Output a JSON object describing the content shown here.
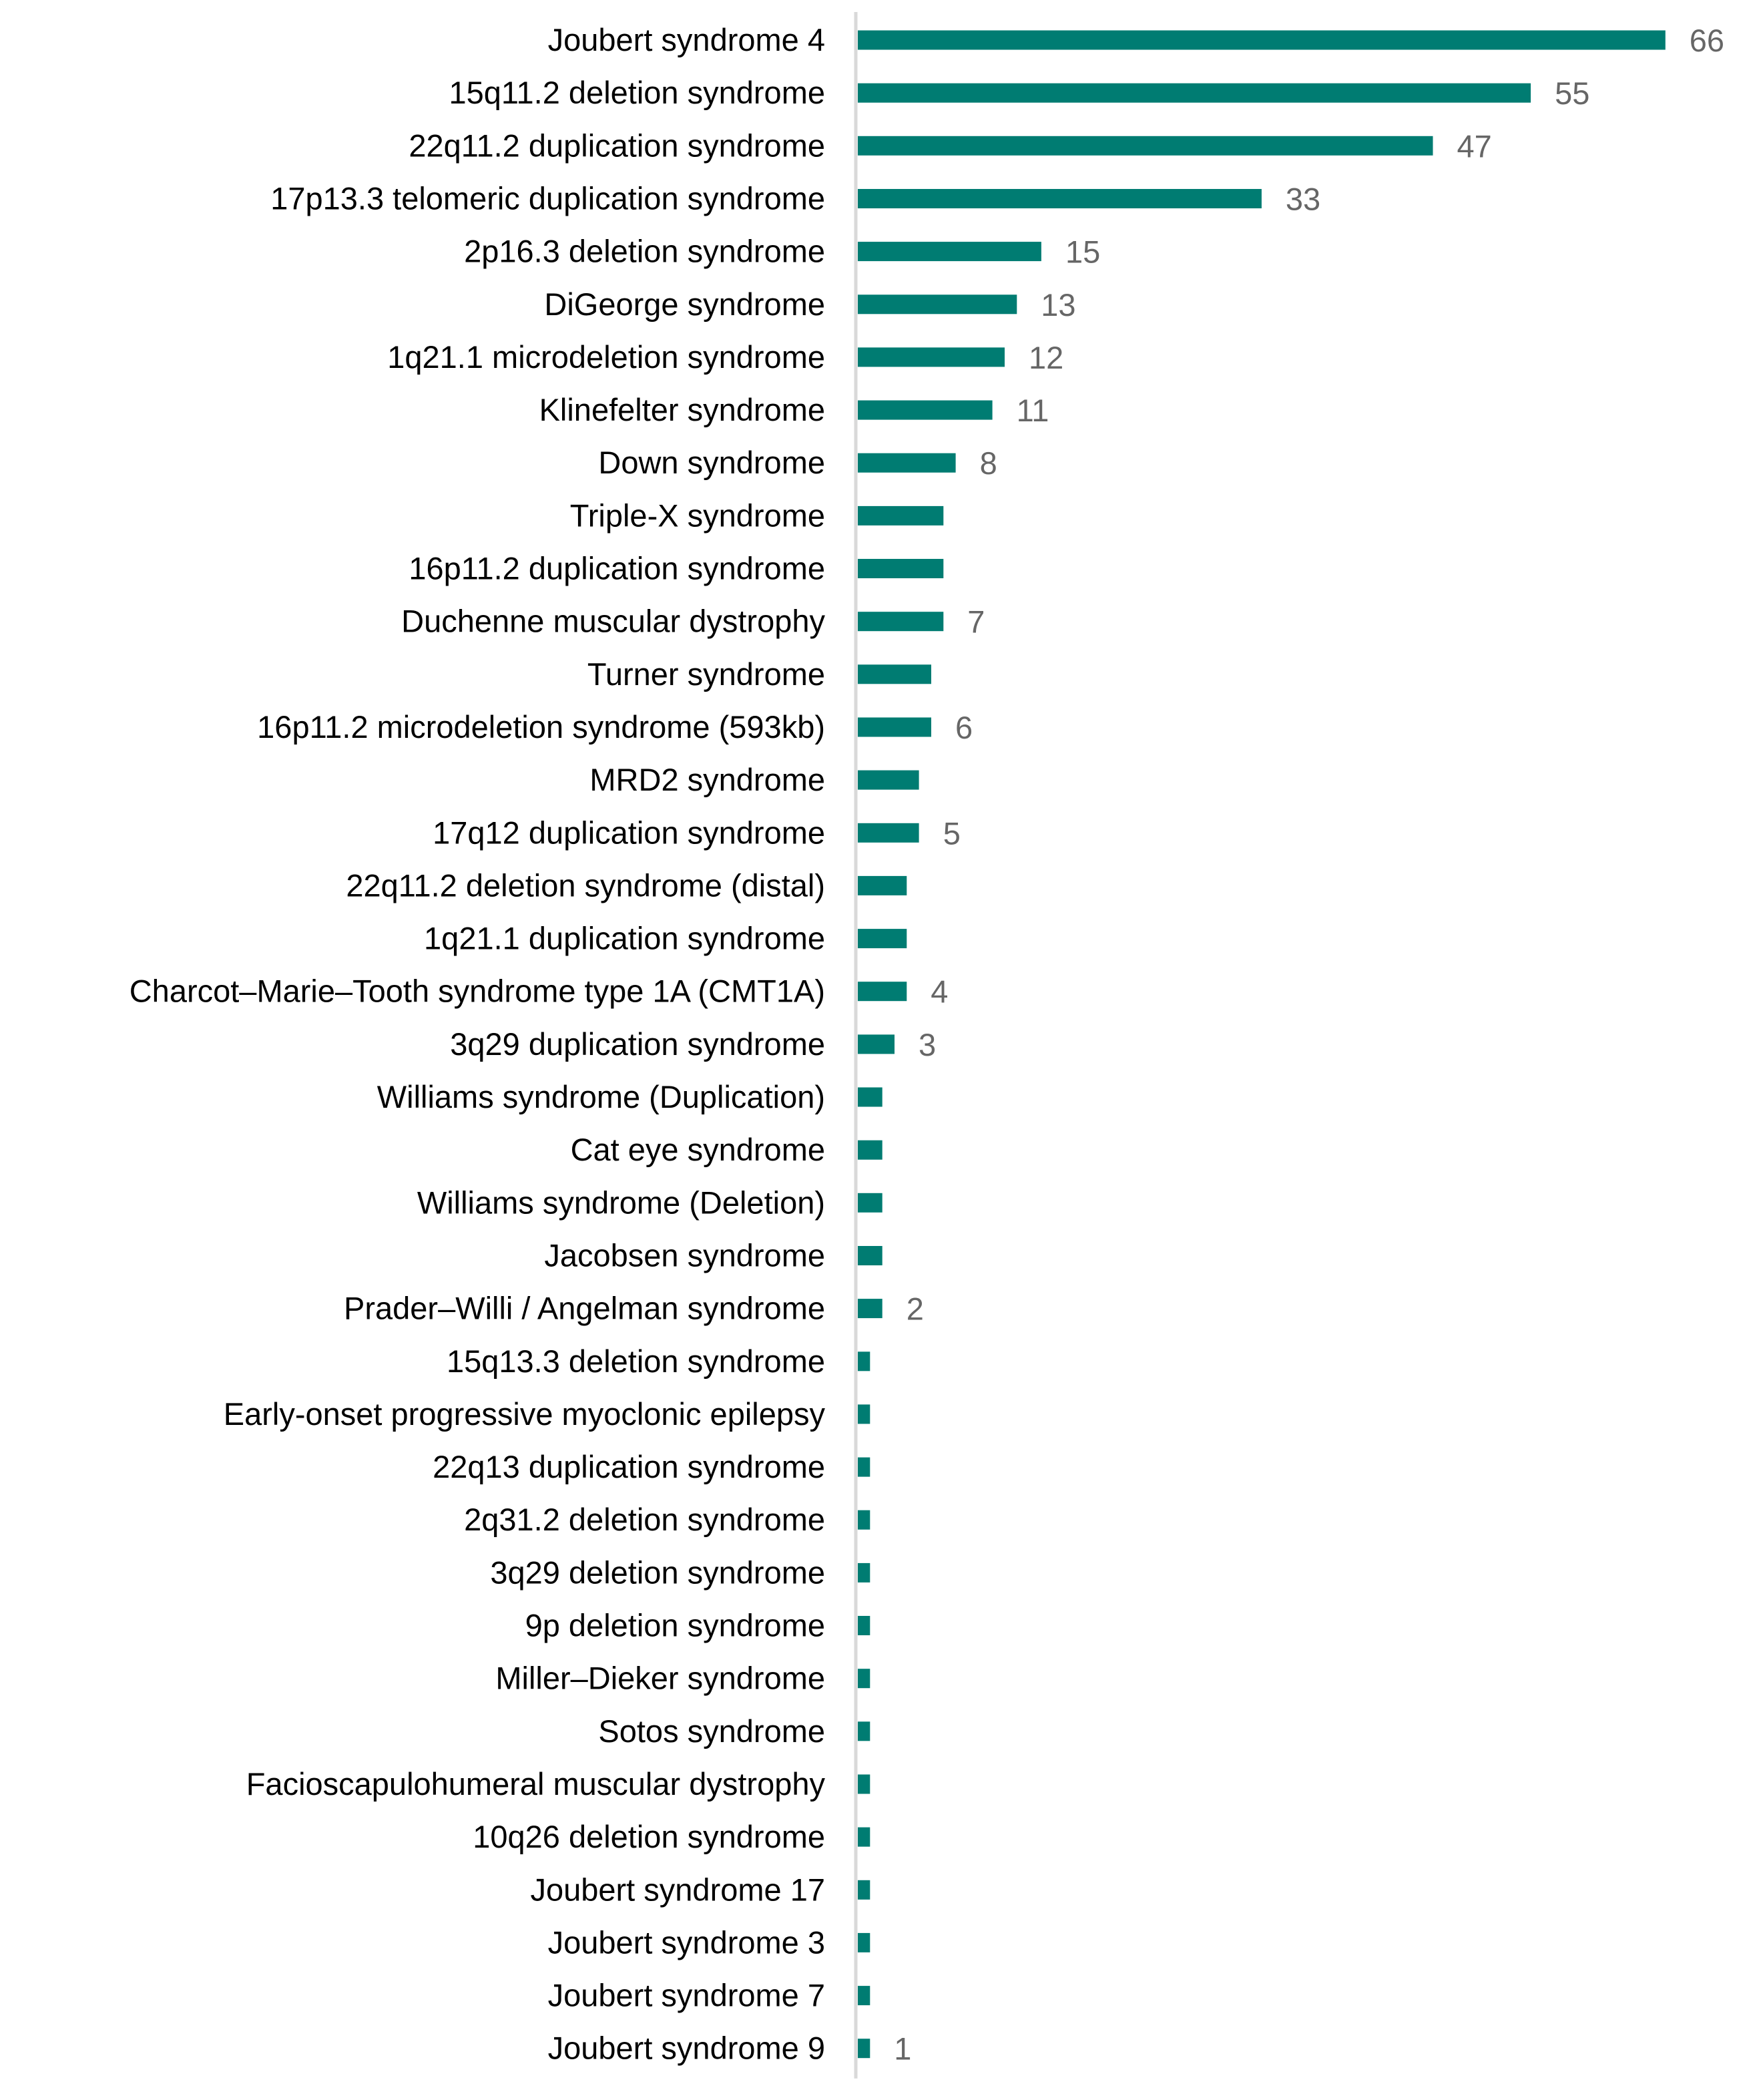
{
  "chart_data": {
    "type": "bar",
    "orientation": "horizontal",
    "title": "",
    "xlabel": "",
    "ylabel": "",
    "xlim": [
      0,
      66
    ],
    "grid": false,
    "legend": "none",
    "colors": {
      "bar": "#007C72",
      "axis": "#D9D9D9",
      "label": "#000000",
      "value_label": "#666666"
    },
    "categories": [
      "Joubert syndrome 4",
      "15q11.2 deletion syndrome",
      "22q11.2 duplication syndrome",
      "17p13.3 telomeric duplication syndrome",
      "2p16.3 deletion syndrome",
      "DiGeorge syndrome",
      "1q21.1 microdeletion syndrome",
      "Klinefelter syndrome",
      "Down syndrome",
      "Triple-X syndrome",
      "16p11.2 duplication syndrome",
      "Duchenne muscular dystrophy",
      "Turner syndrome",
      "16p11.2 microdeletion syndrome (593kb)",
      "MRD2 syndrome",
      "17q12 duplication syndrome",
      "22q11.2 deletion syndrome (distal)",
      "1q21.1 duplication syndrome",
      "Charcot–Marie–Tooth syndrome type 1A (CMT1A)",
      "3q29 duplication syndrome",
      "Williams syndrome (Duplication)",
      "Cat eye syndrome",
      "Williams syndrome (Deletion)",
      "Jacobsen syndrome",
      "Prader–Willi / Angelman syndrome",
      "15q13.3 deletion syndrome",
      "Early-onset progressive myoclonic epilepsy",
      "22q13 duplication syndrome",
      "2q31.2 deletion syndrome",
      "3q29 deletion syndrome",
      "9p deletion syndrome",
      "Miller–Dieker syndrome",
      "Sotos syndrome",
      "Facioscapulohumeral muscular dystrophy",
      "10q26 deletion syndrome",
      "Joubert syndrome 17",
      "Joubert syndrome 3",
      "Joubert syndrome 7",
      "Joubert syndrome 9"
    ],
    "values": [
      66,
      55,
      47,
      33,
      15,
      13,
      12,
      11,
      8,
      7,
      7,
      7,
      6,
      6,
      5,
      5,
      4,
      4,
      4,
      3,
      2,
      2,
      2,
      2,
      2,
      1,
      1,
      1,
      1,
      1,
      1,
      1,
      1,
      1,
      1,
      1,
      1,
      1,
      1
    ],
    "data_labels": [
      "66",
      "55",
      "47",
      "33",
      "15",
      "13",
      "12",
      "11",
      "8",
      "",
      "",
      "7",
      "",
      "6",
      "",
      "5",
      "",
      "",
      "4",
      "3",
      "",
      "",
      "",
      "",
      "2",
      "",
      "",
      "",
      "",
      "",
      "",
      "",
      "",
      "",
      "",
      "",
      "",
      "",
      "1"
    ]
  }
}
